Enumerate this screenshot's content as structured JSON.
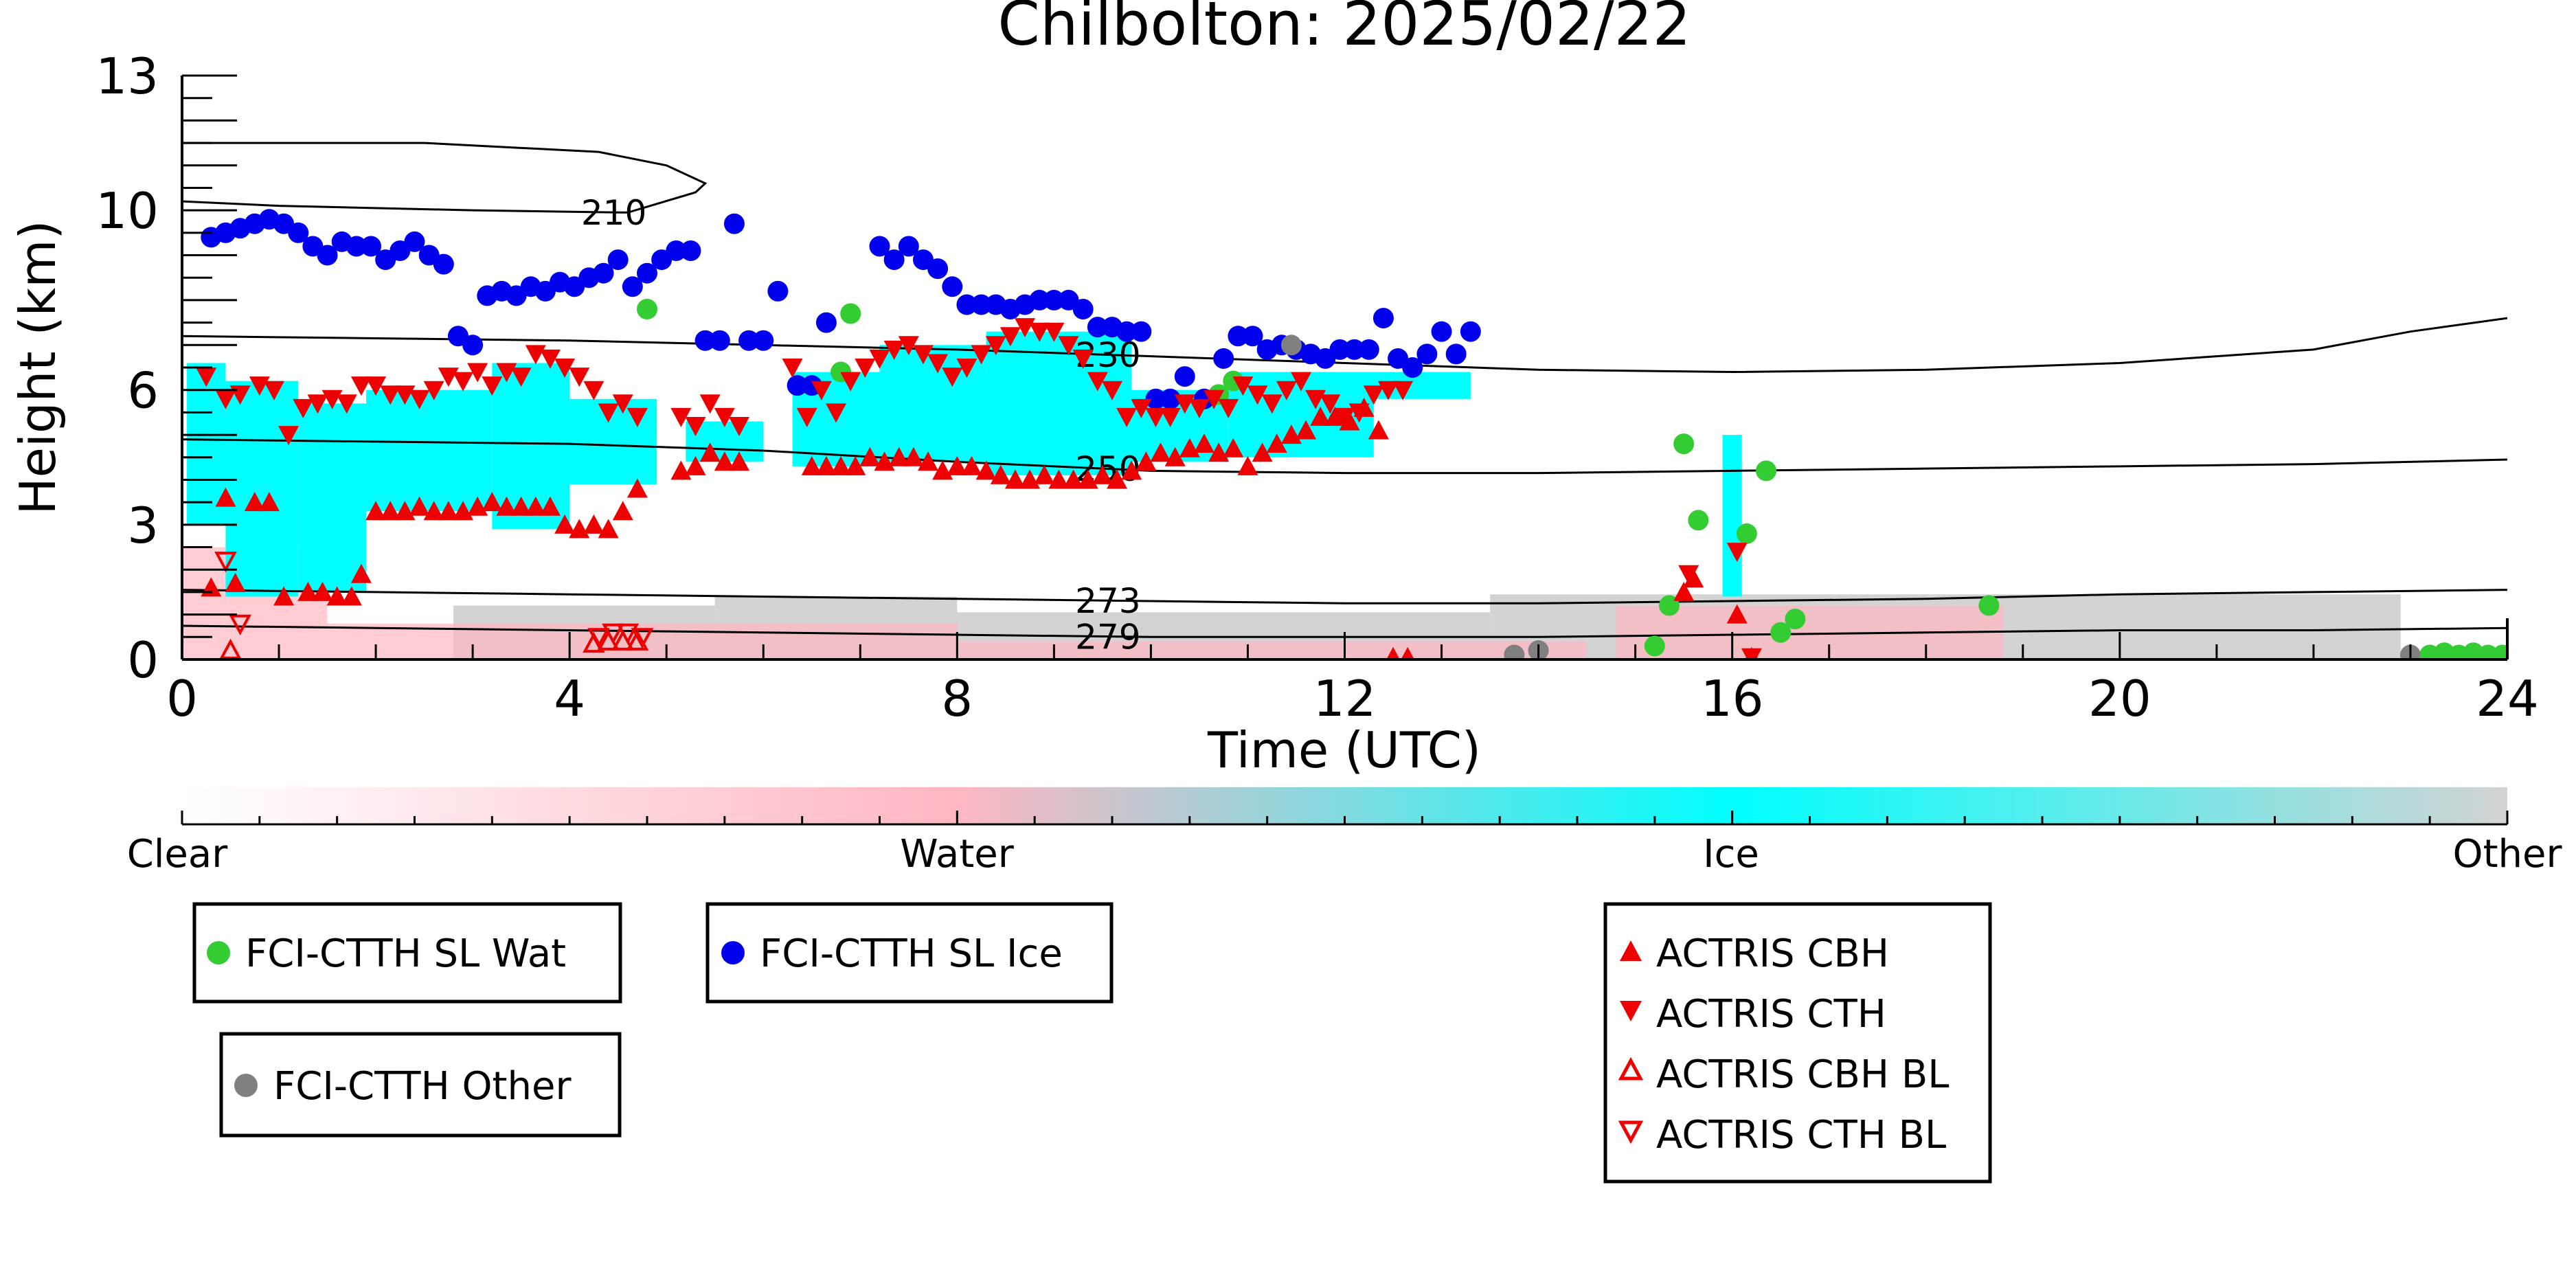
{
  "chart_data": {
    "type": "scatter",
    "title": "Chilbolton: 2025/02/22",
    "xlabel": "Time (UTC)",
    "ylabel": "Height (km)",
    "xlim": [
      0,
      24
    ],
    "ylim": [
      0,
      13
    ],
    "xticks": [
      "0",
      "4",
      "8",
      "12",
      "16",
      "20",
      "24"
    ],
    "yticks": [
      "0",
      "3",
      "6",
      "10",
      "13"
    ],
    "grid": false,
    "background_categories": {
      "labels": [
        "Clear",
        "Water",
        "Ice",
        "Other"
      ],
      "colors": [
        "#ffffff",
        "#ffb6c1",
        "#00ffff",
        "#d3d3d3"
      ]
    },
    "ice_region": [
      {
        "x0": 0.05,
        "x1": 0.45,
        "ybot": 3.0,
        "ytop": 6.6
      },
      {
        "x0": 0.45,
        "x1": 1.2,
        "ybot": 1.4,
        "ytop": 6.2
      },
      {
        "x0": 1.2,
        "x1": 1.9,
        "ybot": 1.5,
        "ytop": 5.7
      },
      {
        "x0": 1.9,
        "x1": 3.2,
        "ybot": 3.3,
        "ytop": 6.0
      },
      {
        "x0": 3.2,
        "x1": 4.0,
        "ybot": 2.9,
        "ytop": 6.6
      },
      {
        "x0": 4.0,
        "x1": 4.9,
        "ybot": 3.9,
        "ytop": 5.8
      },
      {
        "x0": 5.2,
        "x1": 6.0,
        "ybot": 4.4,
        "ytop": 5.3
      },
      {
        "x0": 6.3,
        "x1": 7.2,
        "ybot": 4.3,
        "ytop": 6.4
      },
      {
        "x0": 7.2,
        "x1": 8.3,
        "ybot": 4.4,
        "ytop": 7.0
      },
      {
        "x0": 8.3,
        "x1": 9.8,
        "ybot": 4.1,
        "ytop": 7.3
      },
      {
        "x0": 9.8,
        "x1": 10.8,
        "ybot": 4.4,
        "ytop": 6.0
      },
      {
        "x0": 10.8,
        "x1": 12.3,
        "ybot": 4.5,
        "ytop": 6.4
      },
      {
        "x0": 12.3,
        "x1": 13.3,
        "ybot": 5.8,
        "ytop": 6.4
      },
      {
        "x0": 15.9,
        "x1": 16.1,
        "ybot": 1.4,
        "ytop": 5.0
      }
    ],
    "water_bins": [
      {
        "x0": 0.0,
        "x1": 1.5,
        "ybot": 0,
        "ytop": 2.5
      },
      {
        "x0": 1.5,
        "x1": 8.0,
        "ybot": 0,
        "ytop": 0.8
      },
      {
        "x0": 8.0,
        "x1": 14.5,
        "ybot": 0,
        "ytop": 0.4
      },
      {
        "x0": 14.8,
        "x1": 18.8,
        "ybot": 0,
        "ytop": 1.2
      }
    ],
    "other_bins": [
      {
        "x0": 2.8,
        "x1": 5.5,
        "ybot": 0,
        "ytop": 1.2
      },
      {
        "x0": 5.5,
        "x1": 8.0,
        "ybot": 0,
        "ytop": 1.4
      },
      {
        "x0": 7.7,
        "x1": 13.5,
        "ybot": 0,
        "ytop": 1.05
      },
      {
        "x0": 13.5,
        "x1": 22.9,
        "ybot": 0,
        "ytop": 1.45
      }
    ],
    "contours": [
      {
        "label": "210",
        "label_x": 4.4,
        "x": [
          0,
          1.0,
          3.0,
          4.6,
          5.3,
          5.4,
          5.0,
          4.3,
          2.5,
          0
        ],
        "y": [
          10.2,
          10.1,
          10.0,
          9.95,
          10.4,
          10.6,
          11.0,
          11.3,
          11.5,
          11.5
        ]
      },
      {
        "label": "230",
        "label_x": 9.5,
        "x": [
          0,
          2,
          4,
          6,
          8,
          10,
          12,
          14,
          16,
          18,
          20,
          22,
          23,
          24
        ],
        "y": [
          7.2,
          7.15,
          7.1,
          7.0,
          6.9,
          6.75,
          6.6,
          6.45,
          6.4,
          6.45,
          6.6,
          6.9,
          7.3,
          7.6
        ]
      },
      {
        "label": "250",
        "label_x": 9.5,
        "x": [
          0,
          2,
          4,
          6,
          8,
          10,
          12,
          14,
          16,
          18,
          20,
          22,
          24
        ],
        "y": [
          4.9,
          4.85,
          4.8,
          4.65,
          4.4,
          4.2,
          4.15,
          4.15,
          4.2,
          4.25,
          4.3,
          4.35,
          4.45
        ]
      },
      {
        "label": "273",
        "label_x": 9.5,
        "x": [
          0,
          2,
          4,
          6,
          8,
          10,
          12,
          14,
          16,
          18,
          20,
          22,
          24
        ],
        "y": [
          1.55,
          1.5,
          1.45,
          1.4,
          1.35,
          1.3,
          1.25,
          1.25,
          1.3,
          1.35,
          1.45,
          1.5,
          1.55
        ]
      },
      {
        "label": "279",
        "label_x": 9.5,
        "x": [
          0,
          2,
          4,
          6,
          8,
          10,
          12,
          14,
          16,
          18,
          20,
          22,
          24
        ],
        "y": [
          0.75,
          0.7,
          0.65,
          0.6,
          0.55,
          0.5,
          0.5,
          0.5,
          0.55,
          0.6,
          0.65,
          0.65,
          0.7
        ]
      }
    ],
    "series": [
      {
        "name": "FCI-CTTH SL Wat",
        "color": "#33cc33",
        "marker": "circle",
        "x": [
          4.8,
          6.8,
          6.9,
          10.7,
          10.85,
          15.2,
          15.35,
          15.5,
          15.65,
          16.15,
          16.35,
          16.5,
          16.65,
          18.65,
          23.2,
          23.35,
          23.5,
          23.65,
          23.8,
          23.95
        ],
        "y": [
          7.8,
          6.4,
          7.7,
          5.9,
          6.2,
          0.3,
          1.2,
          4.8,
          3.1,
          2.8,
          4.2,
          0.6,
          0.9,
          1.2,
          0.1,
          0.15,
          0.1,
          0.15,
          0.1,
          0.1
        ]
      },
      {
        "name": "FCI-CTTH SL Ice",
        "color": "#0000ee",
        "marker": "circle",
        "x": [
          0.3,
          0.45,
          0.6,
          0.75,
          0.9,
          1.05,
          1.2,
          1.35,
          1.5,
          1.65,
          1.8,
          1.95,
          2.1,
          2.25,
          2.4,
          2.55,
          2.7,
          2.85,
          3.0,
          3.15,
          3.3,
          3.45,
          3.6,
          3.75,
          3.9,
          4.05,
          4.2,
          4.35,
          4.5,
          4.65,
          4.8,
          4.95,
          5.1,
          5.25,
          5.4,
          5.55,
          5.7,
          5.85,
          6.0,
          6.15,
          6.35,
          6.5,
          6.65,
          7.2,
          7.35,
          7.5,
          7.65,
          7.8,
          7.95,
          8.1,
          8.25,
          8.4,
          8.55,
          8.7,
          8.85,
          9.0,
          9.15,
          9.3,
          9.45,
          9.6,
          9.75,
          9.9,
          10.05,
          10.2,
          10.35,
          10.55,
          10.75,
          10.9,
          11.05,
          11.2,
          11.35,
          11.5,
          11.65,
          11.8,
          11.95,
          12.1,
          12.25,
          12.4,
          12.55,
          12.7,
          12.85,
          13.0,
          13.15,
          13.3
        ],
        "y": [
          9.4,
          9.5,
          9.6,
          9.7,
          9.8,
          9.7,
          9.5,
          9.2,
          9.0,
          9.3,
          9.2,
          9.2,
          8.9,
          9.1,
          9.3,
          9.0,
          8.8,
          7.2,
          7.0,
          8.1,
          8.2,
          8.1,
          8.3,
          8.2,
          8.4,
          8.3,
          8.5,
          8.6,
          8.9,
          8.3,
          8.6,
          8.9,
          9.1,
          9.1,
          7.1,
          7.1,
          9.7,
          7.1,
          7.1,
          8.2,
          6.1,
          6.1,
          7.5,
          9.2,
          8.9,
          9.2,
          8.9,
          8.7,
          8.3,
          7.9,
          7.9,
          7.9,
          7.8,
          7.9,
          8.0,
          8.0,
          8.0,
          7.8,
          7.4,
          7.4,
          7.3,
          7.3,
          5.8,
          5.8,
          6.3,
          5.8,
          6.7,
          7.2,
          7.2,
          6.9,
          7.0,
          6.9,
          6.8,
          6.7,
          6.9,
          6.9,
          6.9,
          7.6,
          6.7,
          6.5,
          6.8,
          7.3,
          6.8,
          7.3
        ],
        "series_note": ""
      },
      {
        "name": "FCI-CTTH Other",
        "color": "#808080",
        "marker": "circle",
        "x": [
          11.45,
          13.75,
          14.0,
          23.0
        ],
        "y": [
          7.0,
          0.1,
          0.2,
          0.1
        ]
      },
      {
        "name": "ACTRIS CBH",
        "color": "#ee0000",
        "marker": "triangle-up",
        "x": [
          0.3,
          0.45,
          0.55,
          0.75,
          0.9,
          1.05,
          1.3,
          1.45,
          1.6,
          1.75,
          1.85,
          2.0,
          2.15,
          2.3,
          2.45,
          2.6,
          2.75,
          2.9,
          3.05,
          3.2,
          3.35,
          3.5,
          3.65,
          3.8,
          3.95,
          4.1,
          4.25,
          4.4,
          4.55,
          4.7,
          5.15,
          5.3,
          5.45,
          5.6,
          5.75,
          6.5,
          6.65,
          6.8,
          6.95,
          7.1,
          7.25,
          7.4,
          7.55,
          7.7,
          7.85,
          8.0,
          8.15,
          8.3,
          8.45,
          8.6,
          8.75,
          8.9,
          9.05,
          9.2,
          9.35,
          9.5,
          9.65,
          9.8,
          9.95,
          10.1,
          10.25,
          10.4,
          10.55,
          10.7,
          10.85,
          11.0,
          11.15,
          11.3,
          11.45,
          11.6,
          11.75,
          11.9,
          12.05,
          12.2,
          12.35,
          12.5,
          12.65,
          15.5,
          15.6,
          16.05,
          16.2
        ],
        "y": [
          1.6,
          3.6,
          1.7,
          3.5,
          3.5,
          1.4,
          1.5,
          1.5,
          1.4,
          1.4,
          1.9,
          3.3,
          3.3,
          3.3,
          3.4,
          3.3,
          3.3,
          3.3,
          3.4,
          3.5,
          3.4,
          3.4,
          3.4,
          3.4,
          3.0,
          2.9,
          3.0,
          2.9,
          3.3,
          3.8,
          4.2,
          4.3,
          4.6,
          4.4,
          4.4,
          4.3,
          4.3,
          4.3,
          4.3,
          4.5,
          4.4,
          4.5,
          4.5,
          4.4,
          4.2,
          4.3,
          4.3,
          4.2,
          4.1,
          4.0,
          4.0,
          4.1,
          4.0,
          4.0,
          4.0,
          4.1,
          4.0,
          4.2,
          4.4,
          4.6,
          4.5,
          4.7,
          4.8,
          4.6,
          4.7,
          4.3,
          4.6,
          4.8,
          5.0,
          5.1,
          5.4,
          5.4,
          5.3,
          5.6,
          5.1,
          0.05,
          0.05,
          1.5,
          1.8,
          1.0,
          0.05
        ]
      },
      {
        "name": "ACTRIS CTH",
        "color": "#ee0000",
        "marker": "triangle-down",
        "x": [
          0.25,
          0.45,
          0.6,
          0.8,
          0.95,
          1.1,
          1.25,
          1.4,
          1.55,
          1.7,
          1.85,
          2.0,
          2.15,
          2.3,
          2.45,
          2.6,
          2.75,
          2.9,
          3.05,
          3.2,
          3.35,
          3.5,
          3.65,
          3.8,
          3.95,
          4.1,
          4.25,
          4.4,
          4.55,
          4.7,
          5.15,
          5.3,
          5.45,
          5.6,
          5.75,
          6.3,
          6.45,
          6.6,
          6.75,
          6.9,
          7.05,
          7.2,
          7.35,
          7.5,
          7.65,
          7.8,
          7.95,
          8.1,
          8.25,
          8.4,
          8.55,
          8.7,
          8.85,
          9.0,
          9.15,
          9.3,
          9.45,
          9.6,
          9.75,
          9.9,
          10.05,
          10.2,
          10.35,
          10.5,
          10.65,
          10.8,
          10.95,
          11.1,
          11.25,
          11.4,
          11.55,
          11.7,
          11.85,
          12.0,
          12.15,
          12.3,
          12.45,
          12.6,
          15.55,
          16.05,
          16.2
        ],
        "y": [
          6.3,
          5.8,
          5.9,
          6.1,
          6.0,
          5.0,
          5.6,
          5.7,
          5.8,
          5.7,
          6.1,
          6.1,
          5.9,
          5.9,
          5.8,
          6.0,
          6.3,
          6.2,
          6.4,
          6.1,
          6.4,
          6.3,
          6.8,
          6.7,
          6.5,
          6.3,
          6.0,
          5.5,
          5.7,
          5.4,
          5.4,
          5.2,
          5.7,
          5.4,
          5.2,
          6.5,
          5.4,
          6.0,
          5.5,
          6.2,
          6.5,
          6.7,
          6.9,
          7.0,
          6.8,
          6.6,
          6.3,
          6.5,
          6.8,
          7.0,
          7.2,
          7.4,
          7.3,
          7.3,
          7.0,
          6.7,
          6.2,
          6.0,
          5.4,
          5.6,
          5.4,
          5.4,
          5.7,
          5.6,
          5.8,
          5.6,
          6.1,
          5.9,
          5.7,
          6.0,
          6.2,
          5.8,
          5.7,
          5.4,
          5.5,
          5.9,
          6.0,
          6.0,
          1.9,
          2.4,
          0.05
        ]
      },
      {
        "name": "ACTRIS CBH BL",
        "color": "#ee0000",
        "marker": "triangle-up-open",
        "x": [
          0.5,
          4.25,
          4.4,
          4.55,
          4.7
        ],
        "y": [
          0.2,
          0.35,
          0.4,
          0.4,
          0.4
        ]
      },
      {
        "name": "ACTRIS CTH BL",
        "color": "#ee0000",
        "marker": "triangle-down-open",
        "x": [
          0.45,
          0.6,
          4.3,
          4.45,
          4.6,
          4.75
        ],
        "y": [
          2.2,
          0.8,
          0.5,
          0.6,
          0.6,
          0.5
        ]
      }
    ],
    "colorbar": {
      "labels": [
        "Clear",
        "Water",
        "Ice",
        "Other"
      ]
    },
    "legend": {
      "placement": "bottom",
      "entries": [
        "FCI-CTTH SL Wat",
        "FCI-CTTH SL Ice",
        "FCI-CTTH Other",
        "ACTRIS CBH",
        "ACTRIS CTH",
        "ACTRIS CBH BL",
        "ACTRIS CTH BL"
      ]
    }
  }
}
